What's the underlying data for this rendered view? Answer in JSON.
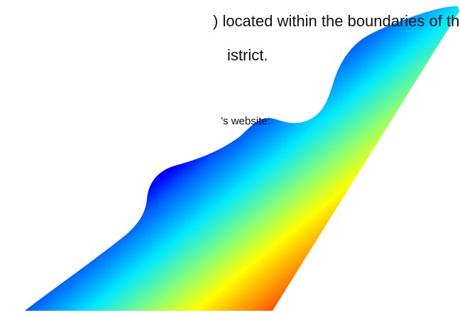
{
  "document": {
    "lines": [
      ") located within the boundaries of the",
      "istrict.",
      "’s website:"
    ]
  }
}
